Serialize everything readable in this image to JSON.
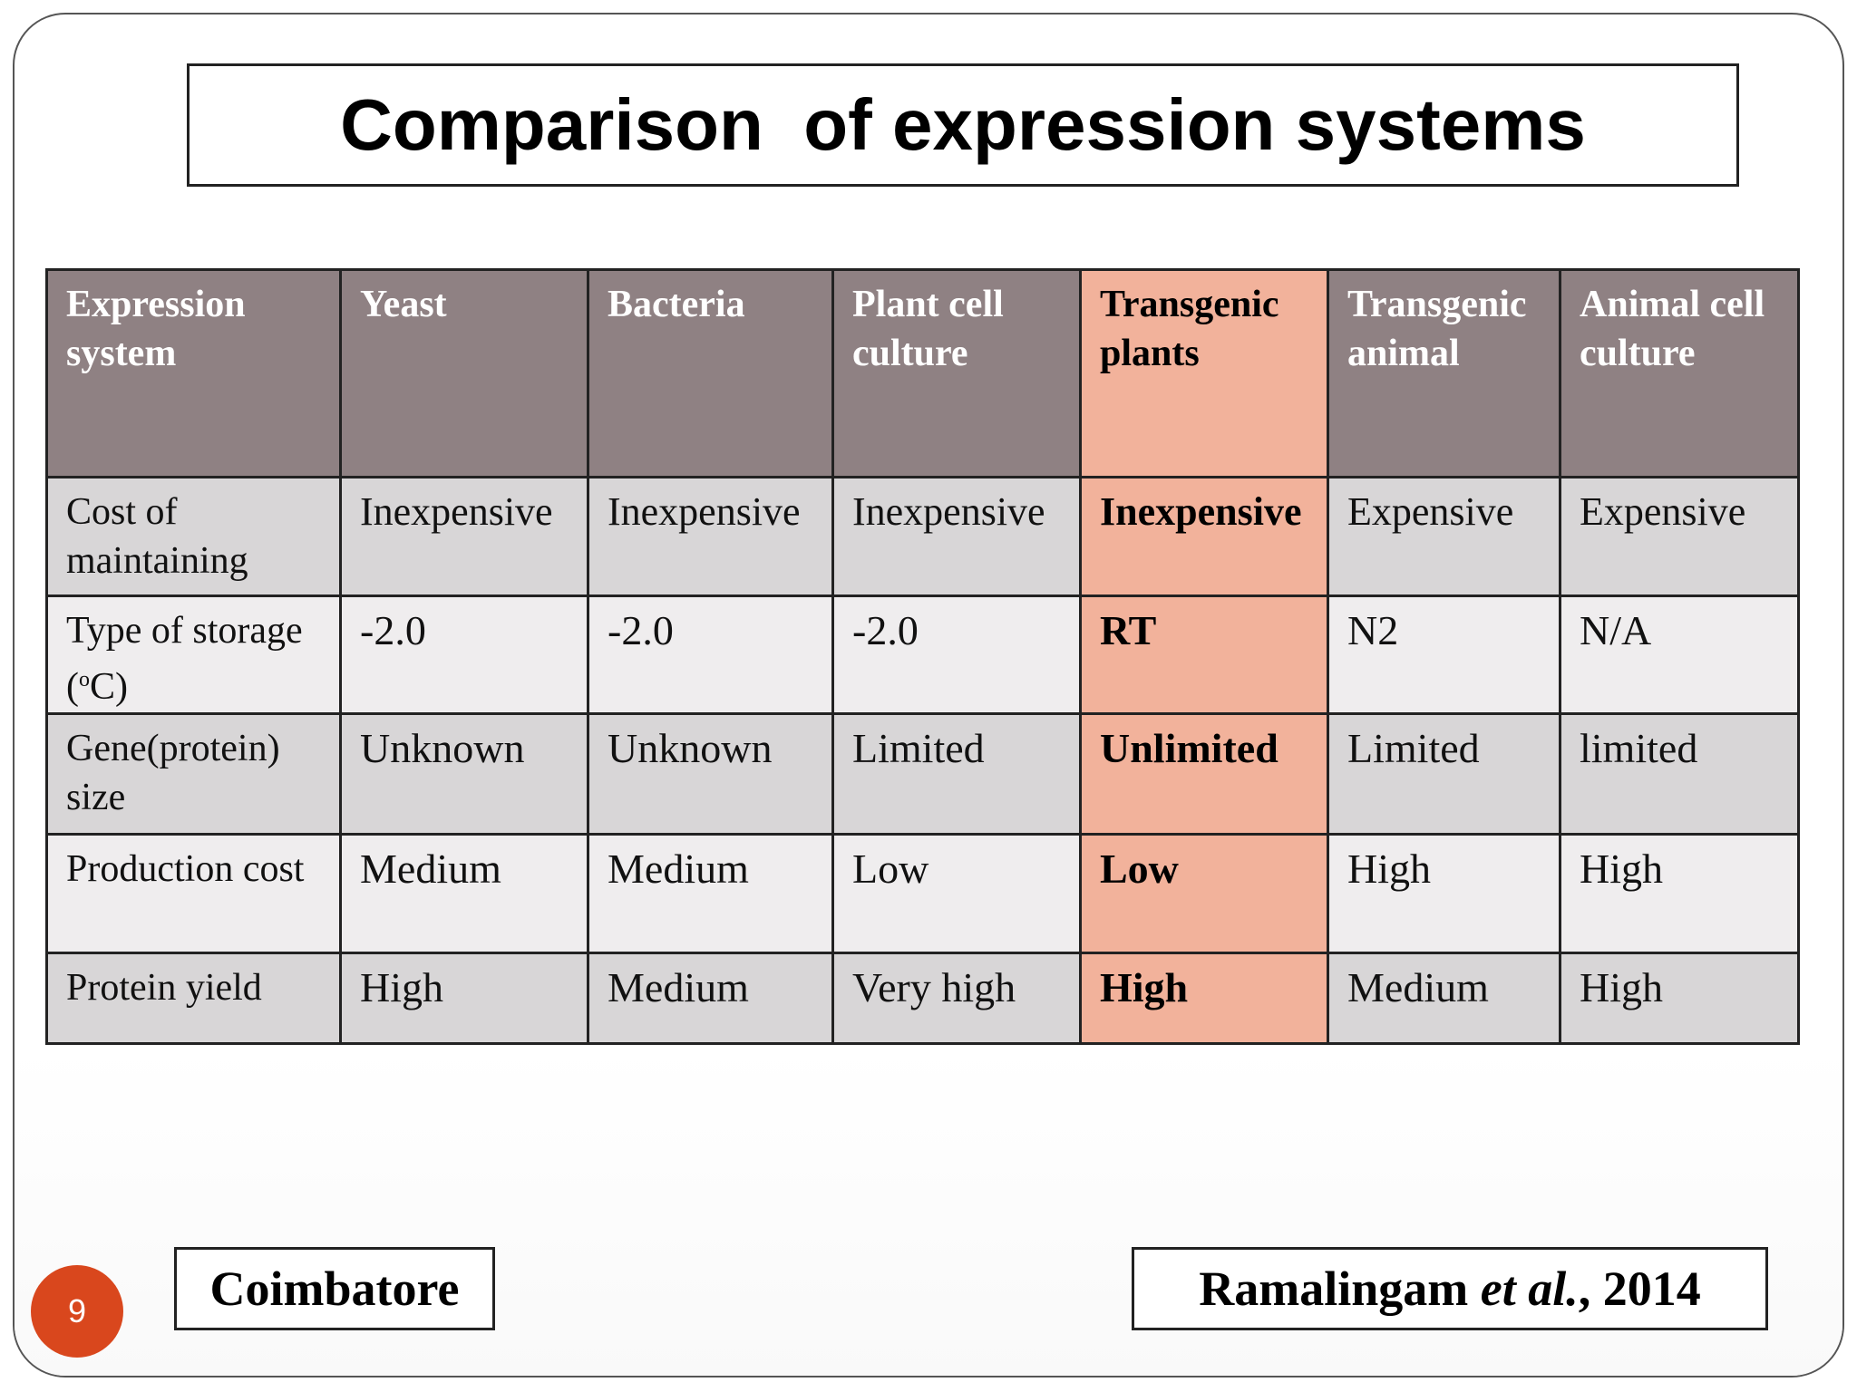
{
  "title": "Comparison  of expression systems",
  "table": {
    "headers": [
      "Expression system",
      "Yeast",
      "Bacteria",
      "Plant cell culture",
      "Transgenic plants",
      "Transgenic animal",
      "Animal cell culture"
    ],
    "rows": [
      {
        "label": "Cost of maintaining",
        "values": [
          "Inexpensive",
          "Inexpensive",
          "Inexpensive",
          "Inexpensive",
          "Expensive",
          "Expensive"
        ]
      },
      {
        "label_pre": "Type of storage (",
        "label_sup": "o",
        "label_post": "C)",
        "values": [
          "-2.0",
          "-2.0",
          "-2.0",
          "RT",
          "N2",
          "N/A"
        ]
      },
      {
        "label": "Gene(protein) size",
        "values": [
          "Unknown",
          "Unknown",
          "Limited",
          "Unlimited",
          "Limited",
          "limited"
        ]
      },
      {
        "label": "Production cost",
        "values": [
          "Medium",
          "Medium",
          "Low",
          "Low",
          "High",
          "High"
        ]
      },
      {
        "label": "Protein yield",
        "values": [
          "High",
          "Medium",
          "Very high",
          "High",
          "Medium",
          "High"
        ]
      }
    ],
    "highlight_color": "#f2b29b",
    "header_color": "#8f8183"
  },
  "page_number": "9",
  "footer": {
    "left": "Coimbatore",
    "right_author": "Ramalingam ",
    "right_etal": "et al.",
    "right_year": ", 2014"
  }
}
